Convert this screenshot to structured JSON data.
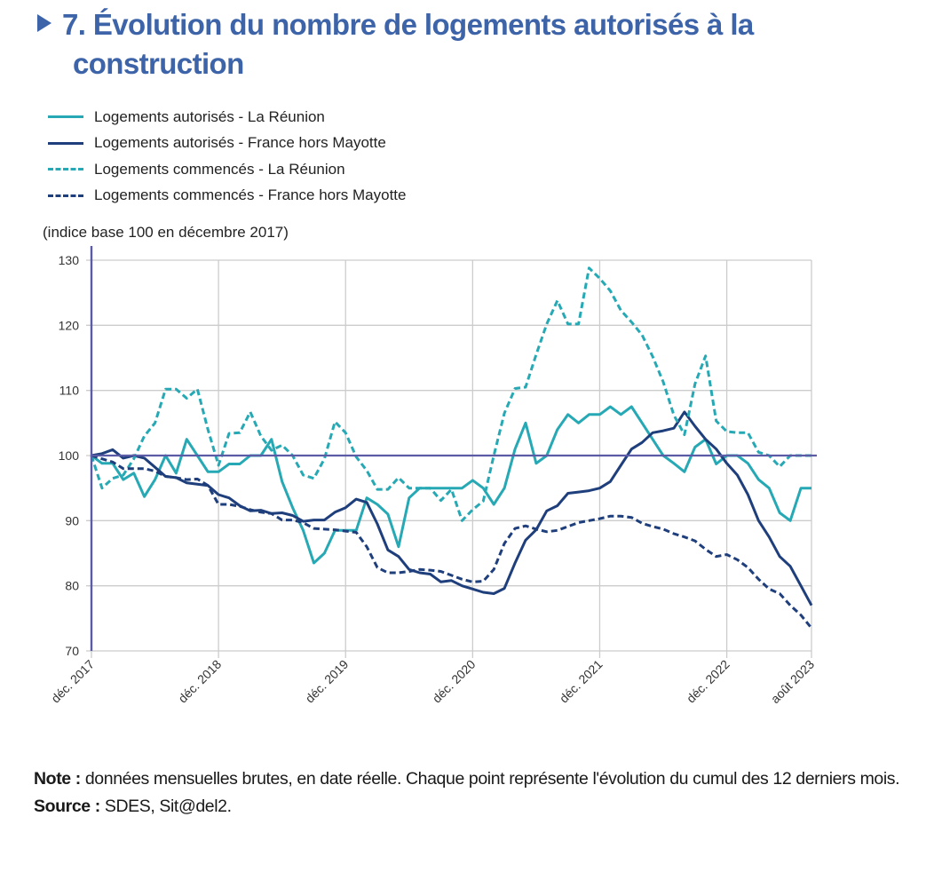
{
  "title": {
    "line1": "7. Évolution du nombre de logements autorisés à la",
    "line2": "construction"
  },
  "unit_label": "(indice base 100 en décembre 2017)",
  "note": {
    "note_label": "Note :",
    "note_text": " données mensuelles brutes, en date réelle. Chaque point représente l'évolution du cumul des 12 derniers mois.",
    "source_label": "Source :",
    "source_text": " SDES, Sit@del2."
  },
  "colors": {
    "title": "#3d64a8",
    "reunion": "#26a9b4",
    "france": "#1f3f7c",
    "axis": "#5b5ba6",
    "grid": "#cccccc"
  },
  "chart_data": {
    "type": "line",
    "title": "7. Évolution du nombre de logements autorisés à la construction",
    "xlabel": "",
    "ylabel": "(indice base 100 en décembre 2017)",
    "ylim": [
      70,
      130
    ],
    "yticks": [
      70,
      80,
      90,
      100,
      110,
      120,
      130
    ],
    "grid": true,
    "legend_position": "top-left",
    "reference_line": 100,
    "x_tick_labels": [
      {
        "index": 0,
        "label": "déc. 2017"
      },
      {
        "index": 12,
        "label": "déc. 2018"
      },
      {
        "index": 24,
        "label": "déc. 2019"
      },
      {
        "index": 36,
        "label": "déc. 2020"
      },
      {
        "index": 48,
        "label": "déc. 2021"
      },
      {
        "index": 60,
        "label": "déc. 2022"
      },
      {
        "index": 68,
        "label": "août 2023"
      }
    ],
    "x_start": "déc. 2017",
    "x_end": "août 2023",
    "x_frequency": "monthly",
    "series": [
      {
        "name": "Logements autorisés - La Réunion",
        "style": "solid",
        "color": "#26a9b4",
        "values": [
          100,
          98.8,
          98.8,
          96.3,
          97.3,
          93.7,
          96.3,
          100,
          97.3,
          102.5,
          100,
          97.5,
          97.5,
          98.7,
          98.7,
          100,
          100,
          102.5,
          96,
          92,
          88.5,
          83.5,
          85,
          88.5,
          88.5,
          88.5,
          93.5,
          92.5,
          91,
          86,
          93.5,
          95,
          95,
          95,
          95,
          95,
          96.2,
          95,
          92.5,
          95,
          101,
          105,
          98.8,
          100,
          104,
          106.3,
          105,
          106.3,
          106.3,
          107.5,
          106.3,
          107.5,
          105,
          102.5,
          100,
          98.8,
          97.5,
          101.3,
          102.5,
          98.7,
          100,
          100,
          98.8,
          96.3,
          95,
          91.2,
          90,
          95,
          95
        ]
      },
      {
        "name": "Logements autorisés - France hors Mayotte",
        "style": "solid",
        "color": "#1f3f7c",
        "values": [
          100,
          100.3,
          100.9,
          99.6,
          100,
          99.6,
          98.2,
          96.8,
          96.6,
          95.8,
          95.6,
          95.4,
          94,
          93.5,
          92.3,
          91.5,
          91.6,
          91.1,
          91.2,
          90.8,
          89.9,
          90.1,
          90.1,
          91.3,
          92,
          93.3,
          92.8,
          89.5,
          85.5,
          84.5,
          82.5,
          82,
          81.8,
          80.6,
          80.8,
          80,
          79.5,
          79,
          78.8,
          79.6,
          83.5,
          87,
          88.6,
          91.5,
          92.3,
          94.2,
          94.4,
          94.6,
          95,
          96,
          98.5,
          101,
          102,
          103.5,
          103.8,
          104.2,
          106.7,
          104.5,
          102.5,
          101,
          98.8,
          97,
          94,
          90,
          87.5,
          84.5,
          83,
          80,
          77
        ]
      },
      {
        "name": "Logements commencés - La Réunion",
        "style": "dashed",
        "color": "#26a9b4",
        "values": [
          100,
          95,
          96.5,
          97,
          99.5,
          103,
          105,
          110.2,
          110.2,
          108.8,
          110.2,
          104,
          98.5,
          103.4,
          103.5,
          106.7,
          103,
          100.8,
          101.6,
          100,
          97,
          96.5,
          99.5,
          105.2,
          103.5,
          99.8,
          97.7,
          94.8,
          94.8,
          96.6,
          95,
          95,
          95,
          93.1,
          94.8,
          90,
          91.7,
          93,
          100,
          106.5,
          110.3,
          110.5,
          115.5,
          120.2,
          123.8,
          120.2,
          120.2,
          128.8,
          127.2,
          125.3,
          122.3,
          120.5,
          118.5,
          115.2,
          111.3,
          106.2,
          103.2,
          111,
          115.3,
          105.3,
          103.7,
          103.5,
          103.5,
          100.5,
          100,
          98.3,
          100,
          100,
          100
        ]
      },
      {
        "name": "Logements commencés - France hors Mayotte",
        "style": "dashed",
        "color": "#1f3f7c",
        "values": [
          100,
          99.5,
          99,
          98,
          98,
          98,
          97.6,
          96.8,
          96.6,
          96.3,
          96.4,
          95.4,
          92.5,
          92.5,
          92.2,
          91.7,
          91.3,
          91.1,
          90.1,
          90.1,
          89.7,
          88.8,
          88.7,
          88.6,
          88.4,
          88.2,
          86,
          82.8,
          82,
          82,
          82.2,
          82.5,
          82.4,
          82.2,
          81.6,
          81,
          80.6,
          80.7,
          82.5,
          86.5,
          88.8,
          89.2,
          88.7,
          88.3,
          88.5,
          89.1,
          89.7,
          90,
          90.3,
          90.7,
          90.7,
          90.5,
          89.6,
          89.1,
          88.7,
          88,
          87.5,
          86.9,
          85.6,
          84.5,
          84.8,
          84,
          82.8,
          81,
          79.5,
          78.8,
          77,
          75.5,
          73.5
        ]
      }
    ]
  }
}
